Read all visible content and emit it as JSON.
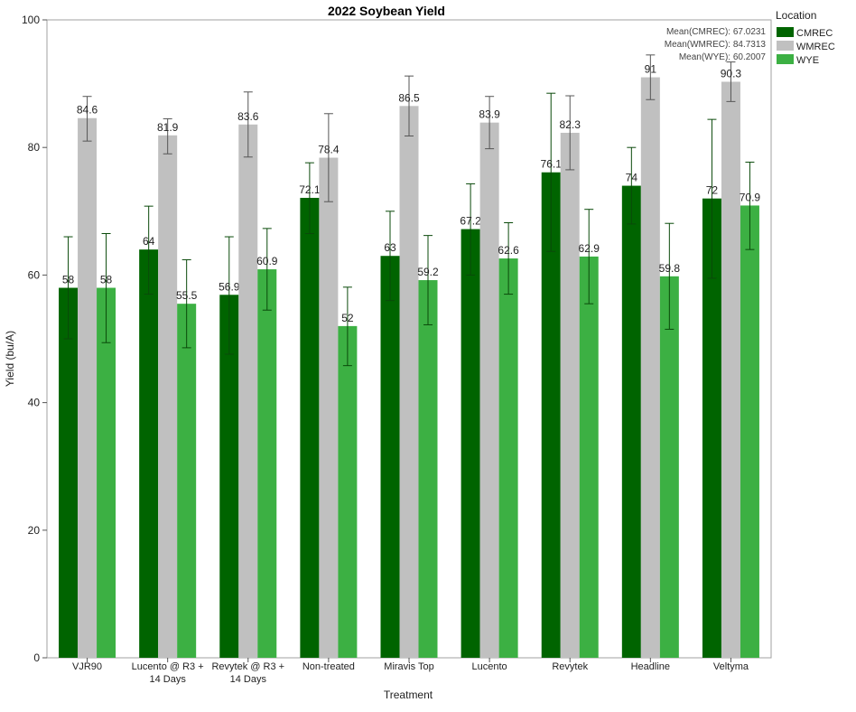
{
  "chart_data": {
    "type": "bar",
    "title": "2022 Soybean Yield",
    "xlabel": "Treatment",
    "ylabel": "Yield (bu/A)",
    "ylim": [
      0,
      100
    ],
    "yticks": [
      0,
      20,
      40,
      60,
      80,
      100
    ],
    "grid": false,
    "legend_position": "right",
    "legend_title": "Location",
    "categories": [
      [
        "VJR90"
      ],
      [
        "Lucento @ R3 +",
        "14 Days"
      ],
      [
        "Revytek @ R3 +",
        "14 Days"
      ],
      [
        "Non-treated"
      ],
      [
        "Miravis Top"
      ],
      [
        "Lucento"
      ],
      [
        "Revytek"
      ],
      [
        "Headline"
      ],
      [
        "Veltyma"
      ]
    ],
    "series": [
      {
        "name": "CMREC",
        "color": "#006400",
        "values": [
          58,
          64,
          56.9,
          72.1,
          63,
          67.2,
          76.1,
          74,
          72
        ],
        "error_low": [
          50,
          57,
          47.6,
          66.5,
          56,
          60,
          63.7,
          68,
          59.5
        ],
        "error_high": [
          66,
          70.8,
          66,
          77.6,
          70,
          74.3,
          88.5,
          80,
          84.4
        ]
      },
      {
        "name": "WMREC",
        "color": "#c0c0c0",
        "values": [
          84.6,
          81.9,
          83.6,
          78.4,
          86.5,
          83.9,
          82.3,
          91,
          90.3
        ],
        "error_low": [
          81,
          79,
          78.5,
          71.5,
          81.8,
          79.8,
          76.5,
          87.5,
          87.2
        ],
        "error_high": [
          88,
          84.5,
          88.7,
          85.3,
          91.2,
          88,
          88.1,
          94.5,
          93.4
        ]
      },
      {
        "name": "WYE",
        "color": "#3cb043",
        "values": [
          58,
          55.5,
          60.9,
          52,
          59.2,
          62.6,
          62.9,
          59.8,
          70.9
        ],
        "error_low": [
          49.4,
          48.6,
          54.5,
          45.8,
          52.2,
          57,
          55.5,
          51.5,
          64
        ],
        "error_high": [
          66.5,
          62.4,
          67.3,
          58.1,
          66.2,
          68.2,
          70.3,
          68.1,
          77.7
        ]
      }
    ],
    "means": [
      "Mean(CMREC): 67.0231",
      "Mean(WMREC): 84.7313",
      "Mean(WYE): 60.2007"
    ]
  }
}
